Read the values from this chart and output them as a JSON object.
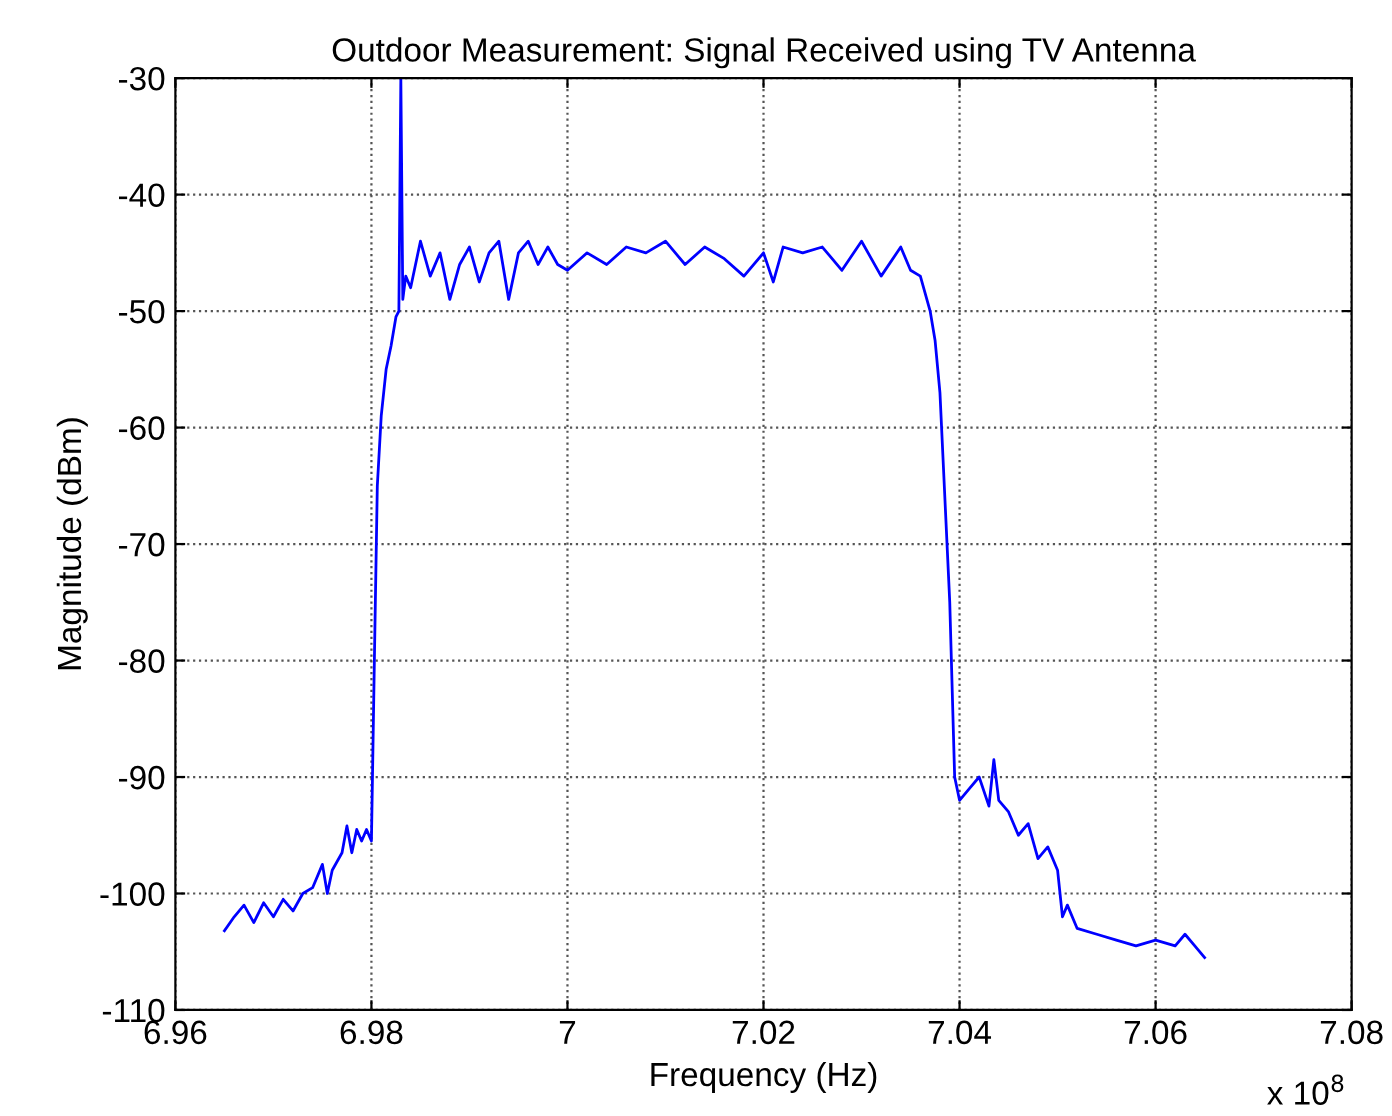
{
  "chart_data": {
    "type": "line",
    "title": "Outdoor Measurement: Signal Received using TV Antenna",
    "xlabel": "Frequency (Hz)",
    "ylabel": "Magnitude (dBm)",
    "annotations": [
      "x 10$^{8}$"
    ],
    "series": [
      {
        "color": "#0000ff",
        "x": [
          6.965,
          6.966,
          6.967,
          6.968,
          6.969,
          6.97,
          6.971,
          6.972,
          6.973,
          6.974,
          6.975,
          6.9755,
          6.976,
          6.977,
          6.9775,
          6.978,
          6.9785,
          6.979,
          6.9795,
          6.98,
          6.9803,
          6.9806,
          6.981,
          6.9815,
          6.982,
          6.9825,
          6.9828,
          6.983,
          6.9832,
          6.9835,
          6.984,
          6.985,
          6.986,
          6.987,
          6.988,
          6.989,
          6.99,
          6.991,
          6.992,
          6.993,
          6.994,
          6.995,
          6.996,
          6.997,
          6.998,
          6.999,
          7.0,
          7.002,
          7.004,
          7.006,
          7.008,
          7.01,
          7.012,
          7.014,
          7.016,
          7.018,
          7.02,
          7.021,
          7.022,
          7.024,
          7.026,
          7.028,
          7.03,
          7.032,
          7.034,
          7.035,
          7.036,
          7.037,
          7.0375,
          7.038,
          7.039,
          7.0395,
          7.04,
          7.041,
          7.042,
          7.043,
          7.0435,
          7.044,
          7.045,
          7.046,
          7.047,
          7.048,
          7.049,
          7.05,
          7.0505,
          7.051,
          7.052,
          7.054,
          7.056,
          7.058,
          7.06,
          7.062,
          7.063,
          7.064,
          7.065
        ],
        "values": [
          -103.2,
          -102,
          -101,
          -102.5,
          -100.8,
          -102,
          -100.5,
          -101.5,
          -100,
          -99.5,
          -97.5,
          -100,
          -98,
          -96.5,
          -94.2,
          -96.5,
          -94.5,
          -95.5,
          -94.5,
          -95.5,
          -80,
          -65,
          -59,
          -55,
          -53,
          -50.5,
          -50,
          -30,
          -49,
          -47,
          -48,
          -44,
          -47,
          -45,
          -49,
          -46,
          -44.5,
          -47.5,
          -45,
          -44,
          -49,
          -45,
          -44,
          -46,
          -44.5,
          -46,
          -46.5,
          -45,
          -46,
          -44.5,
          -45,
          -44,
          -46,
          -44.5,
          -45.5,
          -47,
          -45,
          -47.5,
          -44.5,
          -45,
          -44.5,
          -46.5,
          -44,
          -47,
          -44.5,
          -46.5,
          -47,
          -50,
          -52.5,
          -57,
          -75,
          -90,
          -92,
          -91,
          -90,
          -92.5,
          -88.5,
          -92,
          -93,
          -95,
          -94,
          -97,
          -96,
          -98,
          -102,
          -101,
          -103,
          -103.5,
          -104,
          -104.5,
          -104,
          -104.5,
          -103.5,
          -104.5,
          -105.5
        ]
      }
    ],
    "xlim": [
      6.96,
      7.08
    ],
    "xticks": [
      6.96,
      6.98,
      {
        "value": 7.0,
        "label": "7"
      },
      7.02,
      7.04,
      7.06,
      7.08
    ],
    "ylim": [
      -110,
      -30
    ],
    "yticks": [
      -110,
      -100,
      -90,
      -80,
      -70,
      -60,
      -50,
      -40,
      -30
    ],
    "grid": true,
    "line_style": "solid",
    "marker": "none"
  }
}
